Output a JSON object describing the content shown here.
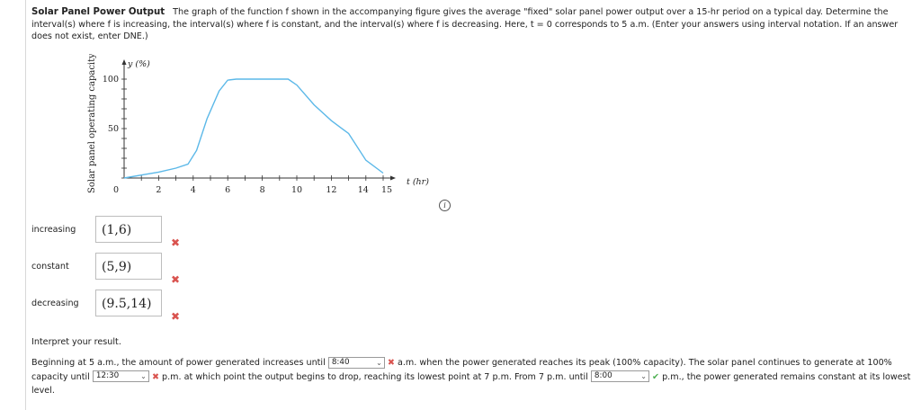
{
  "prompt": {
    "title": "Solar Panel Power Output",
    "text": "The graph of the function f shown in the accompanying figure gives the average \"fixed\" solar panel power output over a 15-hr period on a typical day. Determine the interval(s) where f is increasing, the interval(s) where f is constant, and the interval(s) where f is decreasing. Here, t = 0 corresponds to 5 a.m. (Enter your answers using interval notation. If an answer does not exist, enter DNE.)"
  },
  "graph": {
    "y_axis_title": "Solar panel operating capacity",
    "y_axis_label": "y (%)",
    "x_axis_label": "t (hr)",
    "y_ticks": [
      "100",
      "50"
    ],
    "x_ticks": [
      "0",
      "2",
      "4",
      "6",
      "8",
      "10",
      "12",
      "14",
      "15"
    ],
    "info_icon": "i"
  },
  "chart_data": {
    "type": "line",
    "xlabel": "t (hr)",
    "ylabel": "y (%)",
    "xlim": [
      0,
      15
    ],
    "ylim": [
      0,
      100
    ],
    "x_tick_values": [
      2,
      4,
      6,
      8,
      10,
      12,
      14,
      15
    ],
    "y_tick_values": [
      50,
      100
    ],
    "series": [
      {
        "color": "#5bb8e8",
        "x": [
          0,
          1,
          2,
          3,
          3.7,
          4.2,
          4.8,
          5.5,
          6.0,
          6.5,
          9.5,
          10,
          11,
          12,
          13,
          14,
          15
        ],
        "y": [
          0,
          3,
          6,
          10,
          14,
          28,
          60,
          88,
          99,
          100,
          100,
          94,
          74,
          58,
          45,
          18,
          5
        ]
      }
    ]
  },
  "answers": [
    {
      "label": "increasing",
      "value": "(1,6)",
      "mark": "✖"
    },
    {
      "label": "constant",
      "value": "(5,9)",
      "mark": "✖"
    },
    {
      "label": "decreasing",
      "value": "(9.5,14)",
      "mark": "✖"
    }
  ],
  "interpret": {
    "heading": "Interpret your result.",
    "s1": "Beginning at 5 a.m., the amount of power generated increases until",
    "sel1": "8:40",
    "s2": "a.m. when the power generated reaches its peak (100% capacity). The solar panel continues to generate at 100% capacity until",
    "sel2": "12:30",
    "s3": "p.m. at which point the output begins to drop, reaching its lowest point at 7 p.m. From 7 p.m. until",
    "sel3": "8:00",
    "s4": "p.m., the power generated remains constant at its lowest level.",
    "wrong_mark": "✖",
    "right_mark": "✔",
    "caret": "⌄"
  }
}
